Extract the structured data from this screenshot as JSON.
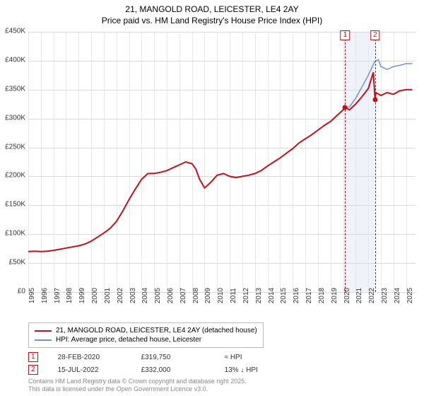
{
  "title": {
    "line1": "21, MANGOLD ROAD, LEICESTER, LE4 2AY",
    "line2": "Price paid vs. HM Land Registry's House Price Index (HPI)"
  },
  "chart": {
    "type": "line",
    "background_color": "#ffffff",
    "grid_color": "#dadada",
    "minor_grid_color": "#e8e8e8",
    "ylim": [
      0,
      450000
    ],
    "ytick_step": 50000,
    "yticks": [
      "£0",
      "£50K",
      "£100K",
      "£150K",
      "£200K",
      "£250K",
      "£300K",
      "£350K",
      "£400K",
      "£450K"
    ],
    "xlim": [
      1995,
      2025.75
    ],
    "xticks": [
      1995,
      1996,
      1997,
      1998,
      1999,
      2000,
      2001,
      2002,
      2003,
      2004,
      2005,
      2006,
      2007,
      2008,
      2009,
      2010,
      2011,
      2012,
      2013,
      2014,
      2015,
      2016,
      2017,
      2018,
      2019,
      2020,
      2021,
      2022,
      2023,
      2024,
      2025
    ],
    "title_fontsize": 12,
    "tick_fontsize": 10,
    "series": [
      {
        "name": "21, MANGOLD ROAD, LEICESTER, LE4 2AY (detached house)",
        "color": "#c40f17",
        "line_width": 2,
        "data": [
          [
            1995.0,
            70000
          ],
          [
            1995.5,
            70500
          ],
          [
            1996.0,
            70000
          ],
          [
            1996.5,
            70500
          ],
          [
            1997.0,
            72000
          ],
          [
            1997.5,
            74000
          ],
          [
            1998.0,
            76000
          ],
          [
            1998.5,
            78000
          ],
          [
            1999.0,
            80000
          ],
          [
            1999.5,
            83000
          ],
          [
            2000.0,
            88000
          ],
          [
            2000.5,
            95000
          ],
          [
            2001.0,
            102000
          ],
          [
            2001.5,
            110000
          ],
          [
            2002.0,
            122000
          ],
          [
            2002.5,
            140000
          ],
          [
            2003.0,
            160000
          ],
          [
            2003.5,
            178000
          ],
          [
            2004.0,
            195000
          ],
          [
            2004.5,
            205000
          ],
          [
            2005.0,
            205000
          ],
          [
            2005.5,
            207000
          ],
          [
            2006.0,
            210000
          ],
          [
            2006.5,
            215000
          ],
          [
            2007.0,
            220000
          ],
          [
            2007.5,
            225000
          ],
          [
            2008.0,
            222000
          ],
          [
            2008.3,
            213000
          ],
          [
            2008.6,
            195000
          ],
          [
            2009.0,
            180000
          ],
          [
            2009.5,
            190000
          ],
          [
            2010.0,
            202000
          ],
          [
            2010.5,
            205000
          ],
          [
            2011.0,
            200000
          ],
          [
            2011.5,
            198000
          ],
          [
            2012.0,
            200000
          ],
          [
            2012.5,
            202000
          ],
          [
            2013.0,
            205000
          ],
          [
            2013.5,
            210000
          ],
          [
            2014.0,
            218000
          ],
          [
            2014.5,
            225000
          ],
          [
            2015.0,
            232000
          ],
          [
            2015.5,
            240000
          ],
          [
            2016.0,
            248000
          ],
          [
            2016.5,
            258000
          ],
          [
            2017.0,
            265000
          ],
          [
            2017.5,
            272000
          ],
          [
            2018.0,
            280000
          ],
          [
            2018.5,
            288000
          ],
          [
            2019.0,
            295000
          ],
          [
            2019.5,
            305000
          ],
          [
            2020.0,
            315000
          ],
          [
            2020.16,
            319750
          ],
          [
            2020.5,
            315000
          ],
          [
            2021.0,
            325000
          ],
          [
            2021.5,
            338000
          ],
          [
            2022.0,
            352000
          ],
          [
            2022.4,
            380000
          ],
          [
            2022.54,
            332000
          ],
          [
            2022.6,
            345000
          ],
          [
            2023.0,
            340000
          ],
          [
            2023.5,
            345000
          ],
          [
            2024.0,
            342000
          ],
          [
            2024.5,
            348000
          ],
          [
            2025.0,
            350000
          ],
          [
            2025.5,
            350000
          ]
        ]
      },
      {
        "name": "HPI: Average price, detached house, Leicester",
        "color": "#6f93c9",
        "line_width": 1.5,
        "data": [
          [
            2020.16,
            319750
          ],
          [
            2020.5,
            320000
          ],
          [
            2021.0,
            335000
          ],
          [
            2021.5,
            355000
          ],
          [
            2022.0,
            375000
          ],
          [
            2022.5,
            398000
          ],
          [
            2022.8,
            402000
          ],
          [
            2023.0,
            390000
          ],
          [
            2023.5,
            385000
          ],
          [
            2024.0,
            390000
          ],
          [
            2024.5,
            392000
          ],
          [
            2025.0,
            395000
          ],
          [
            2025.5,
            395000
          ]
        ]
      }
    ],
    "markers": [
      {
        "id": "1",
        "x": 2020.16,
        "y": 319750,
        "color": "#c40f17",
        "date": "28-FEB-2020",
        "price": "£319,750",
        "delta": "≈ HPI"
      },
      {
        "id": "2",
        "x": 2022.54,
        "y": 332000,
        "color": "#c40f17",
        "date": "15-JUL-2022",
        "price": "£332,000",
        "delta": "13% ↓ HPI"
      }
    ],
    "marker_band": {
      "from": 2020.16,
      "to": 2022.54,
      "color": "#e8eef7"
    }
  },
  "legend": {
    "items": [
      {
        "color": "#c40f17",
        "label": "21, MANGOLD ROAD, LEICESTER, LE4 2AY (detached house)"
      },
      {
        "color": "#6f93c9",
        "label": "HPI: Average price, detached house, Leicester"
      }
    ]
  },
  "footer": {
    "line1": "Contains HM Land Registry data © Crown copyright and database right 2025.",
    "line2": "This data is licensed under the Open Government Licence v3.0."
  }
}
